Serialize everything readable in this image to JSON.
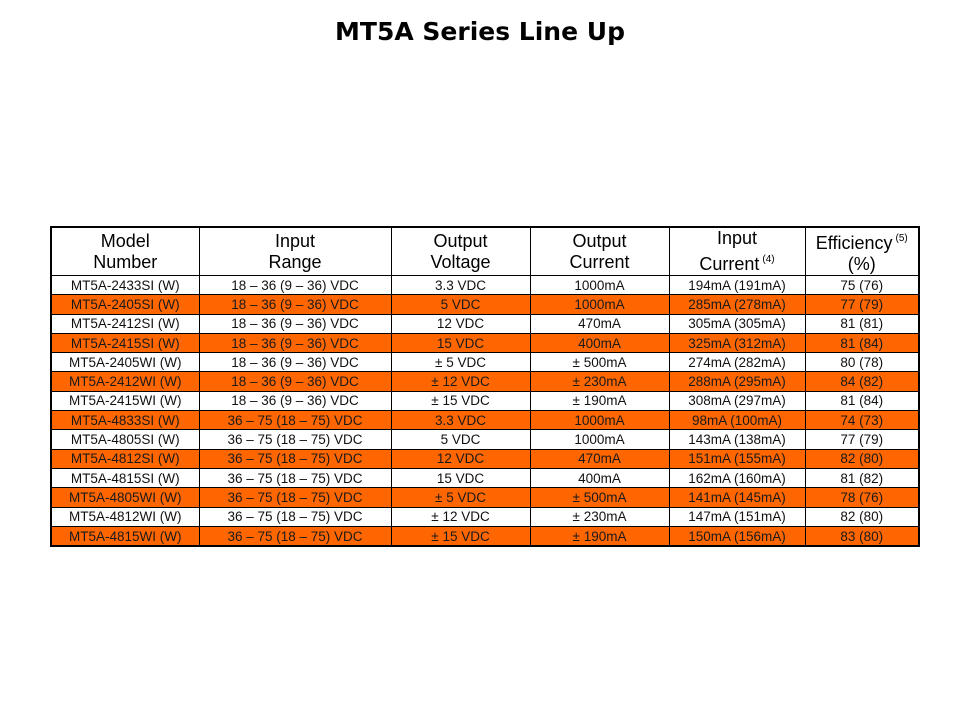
{
  "title": "MT5A Series Line Up",
  "table": {
    "headers": [
      {
        "line1": "Model",
        "line2": "Number",
        "note": ""
      },
      {
        "line1": "Input",
        "line2": "Range",
        "note": ""
      },
      {
        "line1": "Output",
        "line2": "Voltage",
        "note": ""
      },
      {
        "line1": "Output",
        "line2": "Current",
        "note": ""
      },
      {
        "line1": "Input",
        "line2": "Current",
        "note": "(4)"
      },
      {
        "line1": "Efficiency",
        "line2": "(%)",
        "note": "(5)"
      }
    ],
    "rows": [
      {
        "model": "MT5A-2433SI (W)",
        "input_range": "18 – 36 (9 – 36) VDC",
        "output_voltage": "3.3 VDC",
        "output_current": "1000mA",
        "input_current": "194mA (191mA)",
        "efficiency": "75 (76)",
        "highlight": false
      },
      {
        "model": "MT5A-2405SI (W)",
        "input_range": "18 – 36 (9 – 36) VDC",
        "output_voltage": "5 VDC",
        "output_current": "1000mA",
        "input_current": "285mA (278mA)",
        "efficiency": "77 (79)",
        "highlight": true
      },
      {
        "model": "MT5A-2412SI (W)",
        "input_range": "18 – 36 (9 – 36) VDC",
        "output_voltage": "12 VDC",
        "output_current": "470mA",
        "input_current": "305mA (305mA)",
        "efficiency": "81 (81)",
        "highlight": false
      },
      {
        "model": "MT5A-2415SI (W)",
        "input_range": "18 – 36 (9 – 36) VDC",
        "output_voltage": "15 VDC",
        "output_current": "400mA",
        "input_current": "325mA (312mA)",
        "efficiency": "81 (84)",
        "highlight": true
      },
      {
        "model": "MT5A-2405WI (W)",
        "input_range": "18 – 36 (9 – 36) VDC",
        "output_voltage": "± 5 VDC",
        "output_current": "± 500mA",
        "input_current": "274mA (282mA)",
        "efficiency": "80 (78)",
        "highlight": false
      },
      {
        "model": "MT5A-2412WI (W)",
        "input_range": "18 – 36 (9 – 36) VDC",
        "output_voltage": "± 12 VDC",
        "output_current": "± 230mA",
        "input_current": "288mA (295mA)",
        "efficiency": "84 (82)",
        "highlight": true
      },
      {
        "model": "MT5A-2415WI (W)",
        "input_range": "18 – 36 (9 – 36) VDC",
        "output_voltage": "± 15 VDC",
        "output_current": "± 190mA",
        "input_current": "308mA (297mA)",
        "efficiency": "81 (84)",
        "highlight": false
      },
      {
        "model": "MT5A-4833SI (W)",
        "input_range": "36 – 75 (18 – 75) VDC",
        "output_voltage": "3.3 VDC",
        "output_current": "1000mA",
        "input_current": "98mA (100mA)",
        "efficiency": "74 (73)",
        "highlight": true
      },
      {
        "model": "MT5A-4805SI (W)",
        "input_range": "36 – 75 (18 – 75) VDC",
        "output_voltage": "5 VDC",
        "output_current": "1000mA",
        "input_current": "143mA (138mA)",
        "efficiency": "77 (79)",
        "highlight": false
      },
      {
        "model": "MT5A-4812SI (W)",
        "input_range": "36 – 75 (18 – 75) VDC",
        "output_voltage": "12 VDC",
        "output_current": "470mA",
        "input_current": "151mA (155mA)",
        "efficiency": "82 (80)",
        "highlight": true
      },
      {
        "model": "MT5A-4815SI (W)",
        "input_range": "36 – 75 (18 – 75) VDC",
        "output_voltage": "15 VDC",
        "output_current": "400mA",
        "input_current": "162mA (160mA)",
        "efficiency": "81 (82)",
        "highlight": false
      },
      {
        "model": "MT5A-4805WI (W)",
        "input_range": "36 – 75 (18 – 75) VDC",
        "output_voltage": "± 5 VDC",
        "output_current": "± 500mA",
        "input_current": "141mA (145mA)",
        "efficiency": "78 (76)",
        "highlight": true
      },
      {
        "model": "MT5A-4812WI (W)",
        "input_range": "36 – 75 (18 – 75) VDC",
        "output_voltage": "± 12 VDC",
        "output_current": "± 230mA",
        "input_current": "147mA (151mA)",
        "efficiency": "82 (80)",
        "highlight": false
      },
      {
        "model": "MT5A-4815WI (W)",
        "input_range": "36 – 75 (18 – 75) VDC",
        "output_voltage": "± 15 VDC",
        "output_current": "± 190mA",
        "input_current": "150mA (156mA)",
        "efficiency": "83 (80)",
        "highlight": true
      }
    ]
  },
  "colors": {
    "highlight_row": "#ff6600",
    "plain_row": "#ffffff",
    "border": "#000000"
  }
}
